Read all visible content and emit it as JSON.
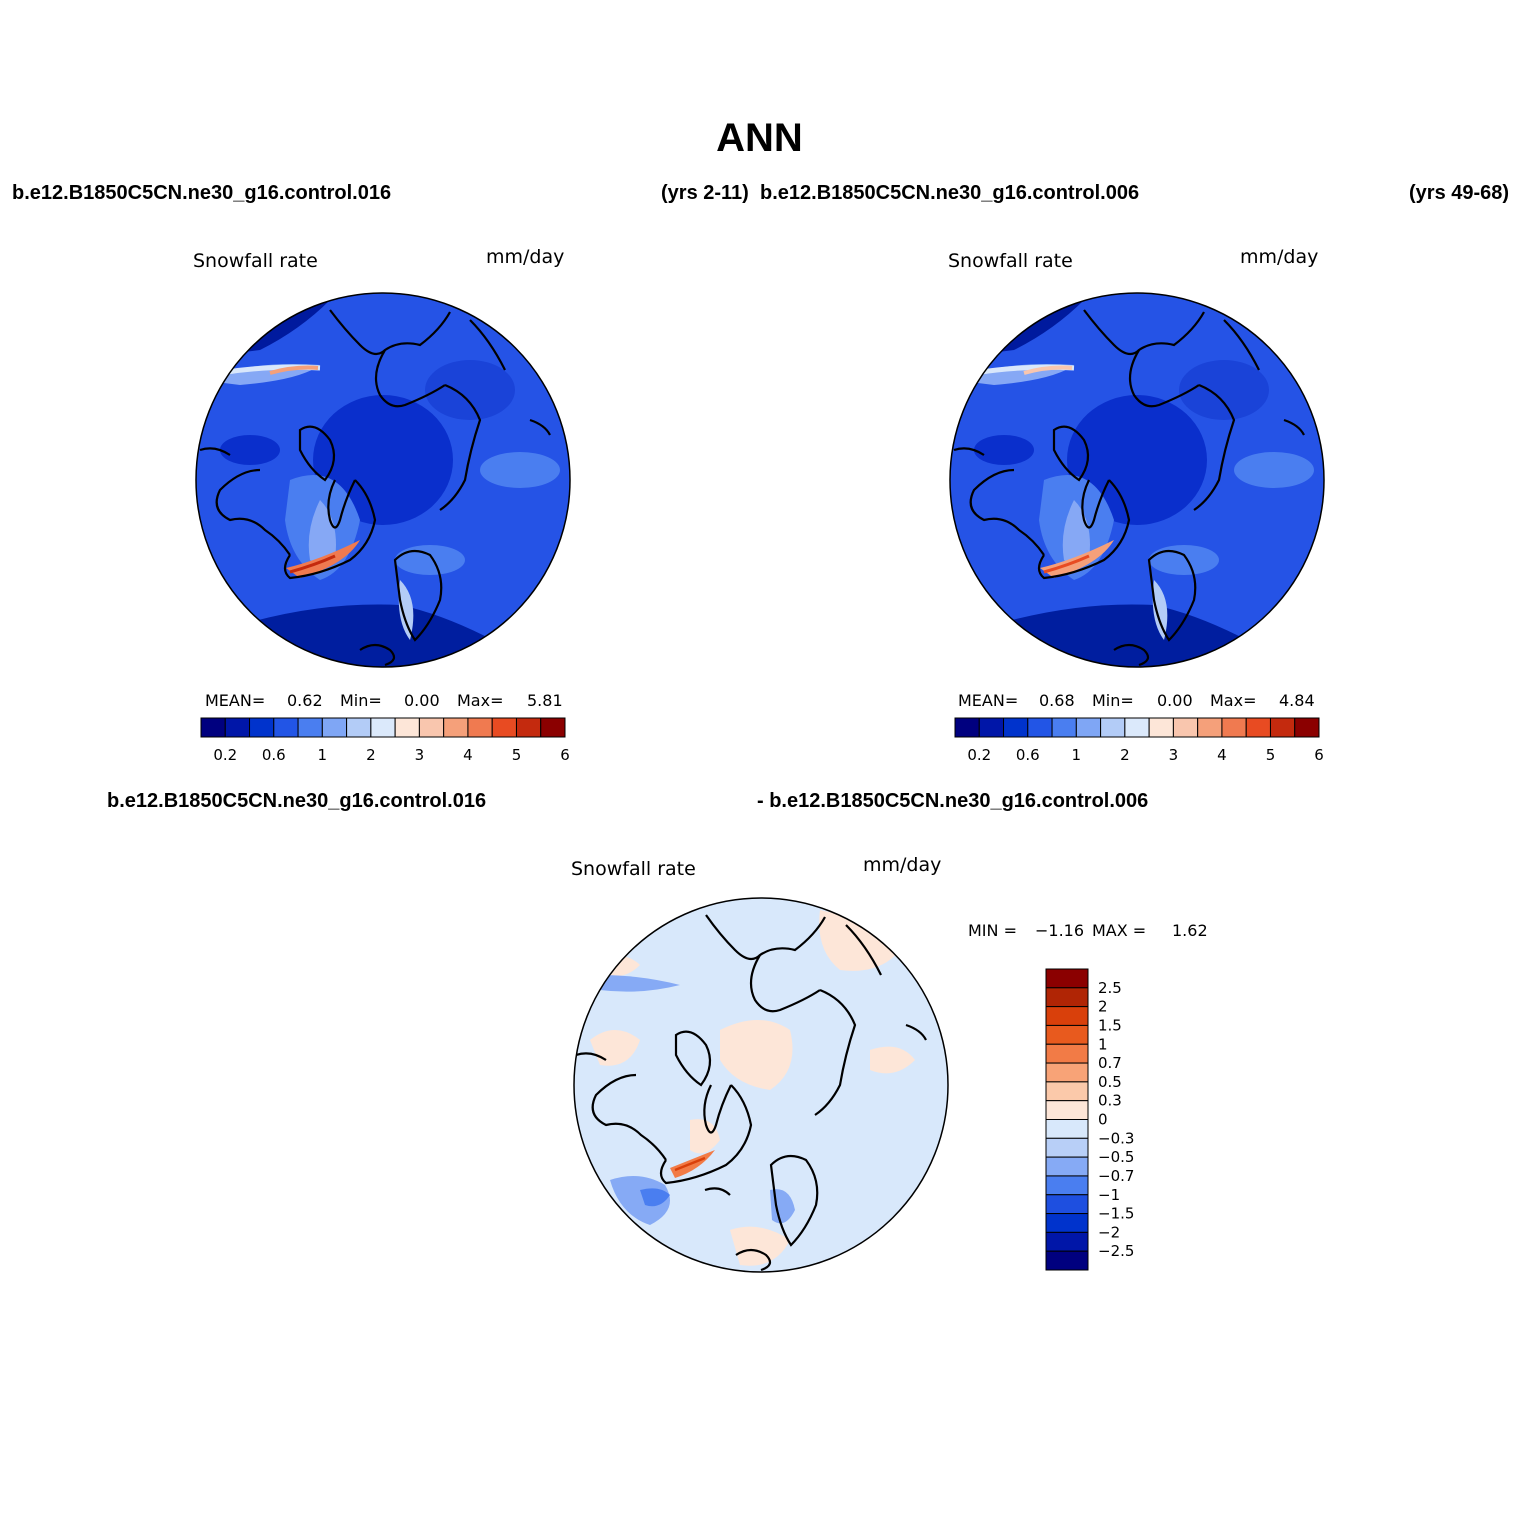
{
  "title": "ANN",
  "headers": {
    "left_case": "b.e12.B1850C5CN.ne30_g16.control.016",
    "left_years": "(yrs 2-11)",
    "right_case": "b.e12.B1850C5CN.ne30_g16.control.006",
    "right_years": "(yrs 49-68)",
    "diff_left": "b.e12.B1850C5CN.ne30_g16.control.016",
    "diff_right": "- b.e12.B1850C5CN.ne30_g16.control.006"
  },
  "panels": [
    {
      "variable": "Snowfall rate",
      "units": "mm/day",
      "mean_label": "MEAN=",
      "mean": "0.62",
      "min_label": "Min=",
      "min": "0.00",
      "max_label": "Max=",
      "max": "5.81"
    },
    {
      "variable": "Snowfall rate",
      "units": "mm/day",
      "mean_label": "MEAN=",
      "mean": "0.68",
      "min_label": "Min=",
      "min": "0.00",
      "max_label": "Max=",
      "max": "4.84"
    },
    {
      "variable": "Snowfall rate",
      "units": "mm/day",
      "min_label": "MIN =",
      "min": "−1.16",
      "max_label": "MAX =",
      "max": "1.62"
    }
  ],
  "colorbar_abs": {
    "colors": [
      "#00007f",
      "#0016a8",
      "#0033cc",
      "#2255e6",
      "#4a7ef0",
      "#7fa6f5",
      "#b3ccf7",
      "#dbe9fb",
      "#fde6d8",
      "#f9c6ae",
      "#f5a07a",
      "#f07a50",
      "#e84b22",
      "#c42a0e",
      "#8b0000"
    ],
    "tick_labels": [
      "0.2",
      "0.6",
      "1",
      "2",
      "3",
      "4",
      "5",
      "6"
    ]
  },
  "colorbar_diff": {
    "colors": [
      "#00007f",
      "#0016a8",
      "#0033cc",
      "#1e4fe0",
      "#4a7ef0",
      "#86aaf5",
      "#b8cff7",
      "#d8e8fb",
      "#fde6d8",
      "#fbc9aa",
      "#f8a377",
      "#f27b46",
      "#e85a1e",
      "#d9400b",
      "#b02505",
      "#8b0000"
    ],
    "tick_labels": [
      "2.5",
      "2",
      "1.5",
      "1",
      "0.7",
      "0.5",
      "0.3",
      "0",
      "−0.3",
      "−0.5",
      "−0.7",
      "−1",
      "−1.5",
      "−2",
      "−2.5"
    ]
  }
}
